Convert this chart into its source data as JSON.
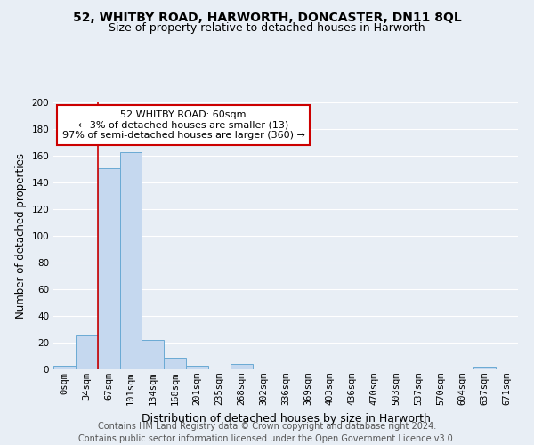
{
  "title": "52, WHITBY ROAD, HARWORTH, DONCASTER, DN11 8QL",
  "subtitle": "Size of property relative to detached houses in Harworth",
  "xlabel": "Distribution of detached houses by size in Harworth",
  "ylabel": "Number of detached properties",
  "footer_line1": "Contains HM Land Registry data © Crown copyright and database right 2024.",
  "footer_line2": "Contains public sector information licensed under the Open Government Licence v3.0.",
  "bin_labels": [
    "0sqm",
    "34sqm",
    "67sqm",
    "101sqm",
    "134sqm",
    "168sqm",
    "201sqm",
    "235sqm",
    "268sqm",
    "302sqm",
    "336sqm",
    "369sqm",
    "403sqm",
    "436sqm",
    "470sqm",
    "503sqm",
    "537sqm",
    "570sqm",
    "604sqm",
    "637sqm",
    "671sqm"
  ],
  "bar_values": [
    3,
    26,
    151,
    163,
    22,
    9,
    3,
    0,
    4,
    0,
    0,
    0,
    0,
    0,
    0,
    0,
    0,
    0,
    0,
    2,
    0
  ],
  "bar_color": "#c5d8ef",
  "bar_edge_color": "#6aaad4",
  "ylim": [
    0,
    200
  ],
  "yticks": [
    0,
    20,
    40,
    60,
    80,
    100,
    120,
    140,
    160,
    180,
    200
  ],
  "red_line_x": 1.5,
  "annotation_text": "52 WHITBY ROAD: 60sqm\n← 3% of detached houses are smaller (13)\n97% of semi-detached houses are larger (360) →",
  "annotation_box_color": "white",
  "annotation_box_edge_color": "#cc0000",
  "red_line_color": "#cc0000",
  "background_color": "#e8eef5",
  "plot_bg_color": "#e8eef5",
  "grid_color": "white",
  "title_fontsize": 10,
  "subtitle_fontsize": 9,
  "tick_fontsize": 7.5,
  "ylabel_fontsize": 8.5,
  "xlabel_fontsize": 9,
  "annotation_fontsize": 8,
  "footer_fontsize": 7
}
